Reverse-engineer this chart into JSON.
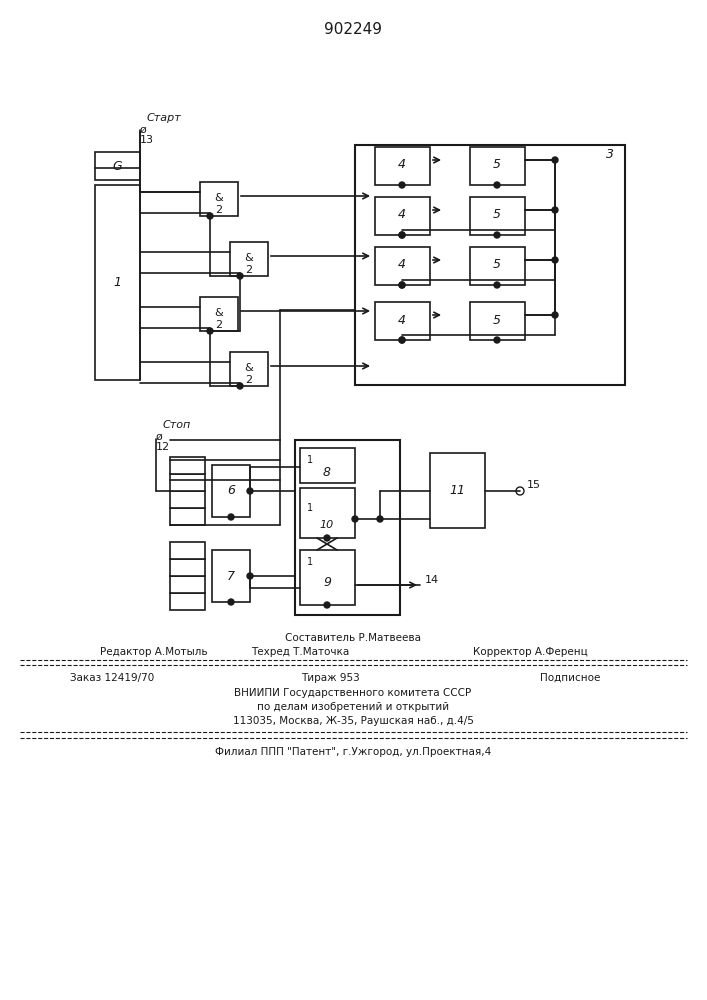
{
  "title": "902249",
  "bg_color": "#ffffff",
  "line_color": "#1a1a1a",
  "footer_lines": [
    {
      "left": "Редактор А.Мотыль",
      "center": "Техред Т.Маточка",
      "right": "Корректор А.Ференц"
    },
    {
      "center": "Составитель Р.Матвеева"
    }
  ],
  "footer_text1": "Заказ 12419/70",
  "footer_text2": "Тираж 953",
  "footer_text3": "Подписное",
  "footer_text4": "ВНИИПИ Государственного комитета СССР",
  "footer_text5": "по делам изобретений и открытий",
  "footer_text6": "113035, Москва, Ж-35, Раушская наб., д.4/5",
  "footer_text7": "Филиал ППП \"Патент\", г.Ужгород, ул.Проектная,4"
}
